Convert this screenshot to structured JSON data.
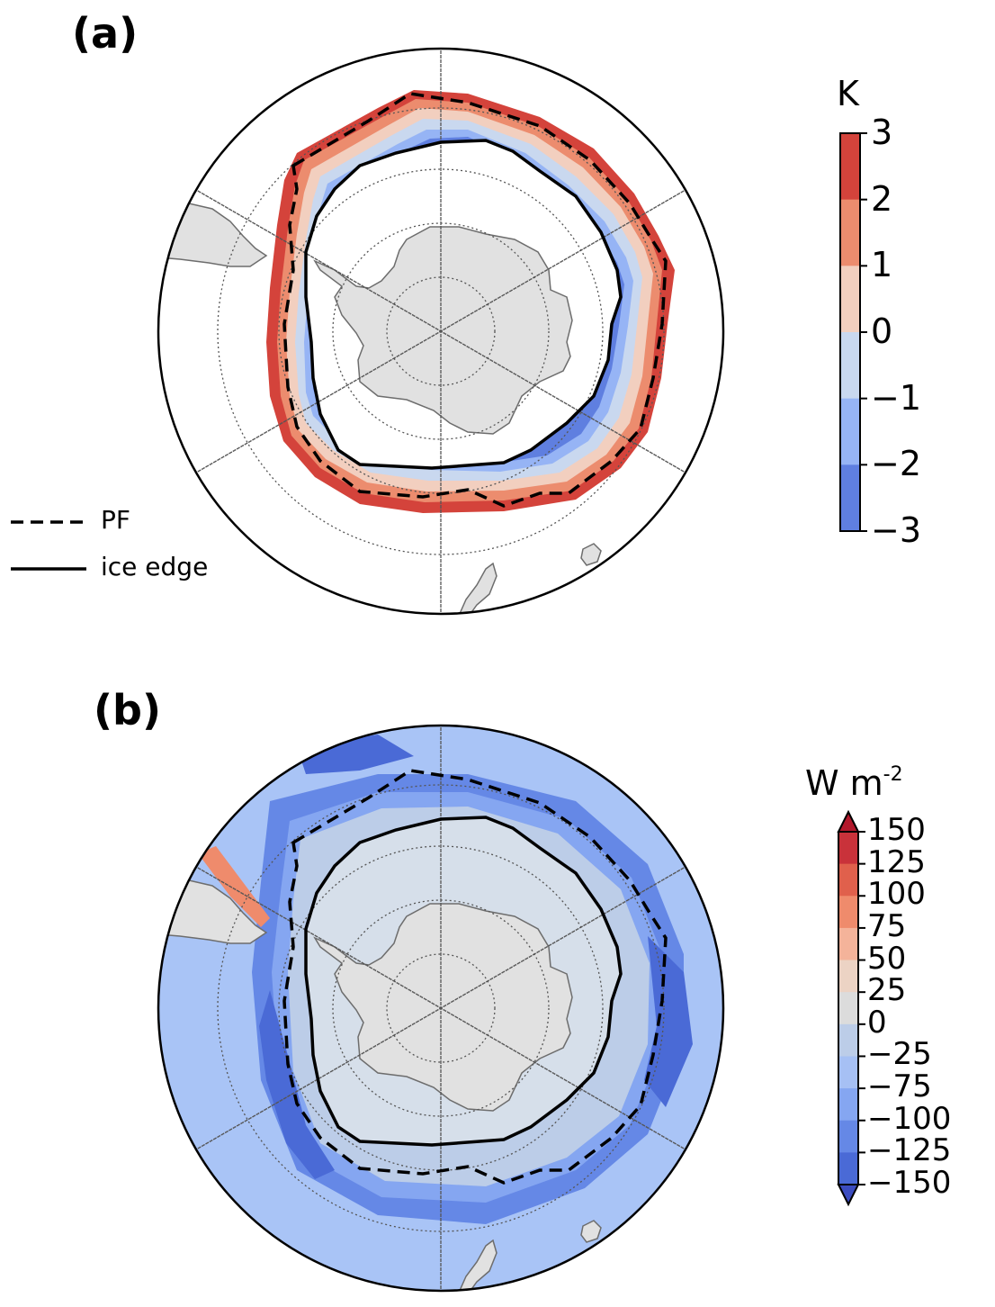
{
  "panels": {
    "a": {
      "label": "(a)",
      "units": "K",
      "colorbar_ticks": [
        "3",
        "2",
        "1",
        "0",
        "−1",
        "−2",
        "−3"
      ],
      "colorbar_colors": [
        "#d4433b",
        "#ec8c6e",
        "#f2cfbf",
        "#c9d8ef",
        "#96b4f5",
        "#5f7fe0"
      ]
    },
    "b": {
      "label": "(b)",
      "units_base": "W m",
      "units_exp": "-2",
      "colorbar_ticks": [
        "150",
        "125",
        "100",
        "75",
        "50",
        "25",
        "0",
        "−25",
        "−75",
        "−100",
        "−125",
        "−150"
      ],
      "colorbar_colors": [
        "#c9323a",
        "#e0604c",
        "#ef8b6c",
        "#f4b39a",
        "#ecd3c4",
        "#dcdcdc",
        "#bccde8",
        "#a6c0f4",
        "#85a6f1",
        "#6588e6",
        "#4a6ad6"
      ],
      "extend_colors": {
        "max": "#b2182b",
        "min": "#3b4cc0"
      }
    }
  },
  "legend": {
    "items": [
      {
        "label": "PF",
        "style": "dashed"
      },
      {
        "label": "ice edge",
        "style": "solid"
      }
    ]
  },
  "colors": {
    "land": "#e1e1e1",
    "coast": "#6d6d6d",
    "grid": "#555555",
    "open_ocean_a": "#ffffff",
    "ice_zone_b": "#d6dfea",
    "ocean_b": "#a9c4f6"
  }
}
